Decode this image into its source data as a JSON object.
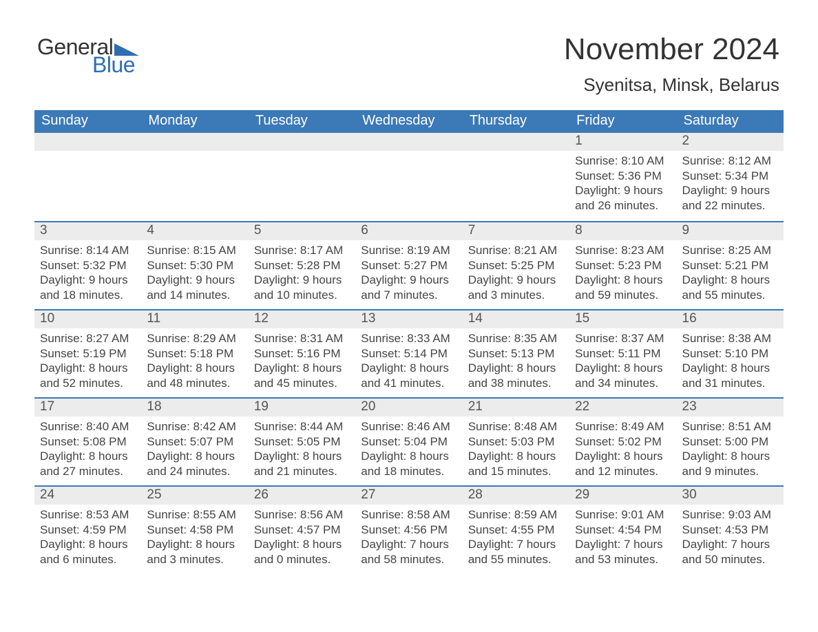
{
  "brand": {
    "text1": "General",
    "text2": "Blue",
    "accent_color": "#2d6eb4"
  },
  "title": "November 2024",
  "location": "Syenitsa, Minsk, Belarus",
  "header_bg": "#3b79b7",
  "header_text_color": "#ffffff",
  "row_divider_color": "#3b79b7",
  "daynum_bg": "#ececec",
  "text_color": "#444444",
  "days_of_week": [
    "Sunday",
    "Monday",
    "Tuesday",
    "Wednesday",
    "Thursday",
    "Friday",
    "Saturday"
  ],
  "weeks": [
    [
      {
        "n": "",
        "lines": []
      },
      {
        "n": "",
        "lines": []
      },
      {
        "n": "",
        "lines": []
      },
      {
        "n": "",
        "lines": []
      },
      {
        "n": "",
        "lines": []
      },
      {
        "n": "1",
        "lines": [
          "Sunrise: 8:10 AM",
          "Sunset: 5:36 PM",
          "Daylight: 9 hours",
          "and 26 minutes."
        ]
      },
      {
        "n": "2",
        "lines": [
          "Sunrise: 8:12 AM",
          "Sunset: 5:34 PM",
          "Daylight: 9 hours",
          "and 22 minutes."
        ]
      }
    ],
    [
      {
        "n": "3",
        "lines": [
          "Sunrise: 8:14 AM",
          "Sunset: 5:32 PM",
          "Daylight: 9 hours",
          "and 18 minutes."
        ]
      },
      {
        "n": "4",
        "lines": [
          "Sunrise: 8:15 AM",
          "Sunset: 5:30 PM",
          "Daylight: 9 hours",
          "and 14 minutes."
        ]
      },
      {
        "n": "5",
        "lines": [
          "Sunrise: 8:17 AM",
          "Sunset: 5:28 PM",
          "Daylight: 9 hours",
          "and 10 minutes."
        ]
      },
      {
        "n": "6",
        "lines": [
          "Sunrise: 8:19 AM",
          "Sunset: 5:27 PM",
          "Daylight: 9 hours",
          "and 7 minutes."
        ]
      },
      {
        "n": "7",
        "lines": [
          "Sunrise: 8:21 AM",
          "Sunset: 5:25 PM",
          "Daylight: 9 hours",
          "and 3 minutes."
        ]
      },
      {
        "n": "8",
        "lines": [
          "Sunrise: 8:23 AM",
          "Sunset: 5:23 PM",
          "Daylight: 8 hours",
          "and 59 minutes."
        ]
      },
      {
        "n": "9",
        "lines": [
          "Sunrise: 8:25 AM",
          "Sunset: 5:21 PM",
          "Daylight: 8 hours",
          "and 55 minutes."
        ]
      }
    ],
    [
      {
        "n": "10",
        "lines": [
          "Sunrise: 8:27 AM",
          "Sunset: 5:19 PM",
          "Daylight: 8 hours",
          "and 52 minutes."
        ]
      },
      {
        "n": "11",
        "lines": [
          "Sunrise: 8:29 AM",
          "Sunset: 5:18 PM",
          "Daylight: 8 hours",
          "and 48 minutes."
        ]
      },
      {
        "n": "12",
        "lines": [
          "Sunrise: 8:31 AM",
          "Sunset: 5:16 PM",
          "Daylight: 8 hours",
          "and 45 minutes."
        ]
      },
      {
        "n": "13",
        "lines": [
          "Sunrise: 8:33 AM",
          "Sunset: 5:14 PM",
          "Daylight: 8 hours",
          "and 41 minutes."
        ]
      },
      {
        "n": "14",
        "lines": [
          "Sunrise: 8:35 AM",
          "Sunset: 5:13 PM",
          "Daylight: 8 hours",
          "and 38 minutes."
        ]
      },
      {
        "n": "15",
        "lines": [
          "Sunrise: 8:37 AM",
          "Sunset: 5:11 PM",
          "Daylight: 8 hours",
          "and 34 minutes."
        ]
      },
      {
        "n": "16",
        "lines": [
          "Sunrise: 8:38 AM",
          "Sunset: 5:10 PM",
          "Daylight: 8 hours",
          "and 31 minutes."
        ]
      }
    ],
    [
      {
        "n": "17",
        "lines": [
          "Sunrise: 8:40 AM",
          "Sunset: 5:08 PM",
          "Daylight: 8 hours",
          "and 27 minutes."
        ]
      },
      {
        "n": "18",
        "lines": [
          "Sunrise: 8:42 AM",
          "Sunset: 5:07 PM",
          "Daylight: 8 hours",
          "and 24 minutes."
        ]
      },
      {
        "n": "19",
        "lines": [
          "Sunrise: 8:44 AM",
          "Sunset: 5:05 PM",
          "Daylight: 8 hours",
          "and 21 minutes."
        ]
      },
      {
        "n": "20",
        "lines": [
          "Sunrise: 8:46 AM",
          "Sunset: 5:04 PM",
          "Daylight: 8 hours",
          "and 18 minutes."
        ]
      },
      {
        "n": "21",
        "lines": [
          "Sunrise: 8:48 AM",
          "Sunset: 5:03 PM",
          "Daylight: 8 hours",
          "and 15 minutes."
        ]
      },
      {
        "n": "22",
        "lines": [
          "Sunrise: 8:49 AM",
          "Sunset: 5:02 PM",
          "Daylight: 8 hours",
          "and 12 minutes."
        ]
      },
      {
        "n": "23",
        "lines": [
          "Sunrise: 8:51 AM",
          "Sunset: 5:00 PM",
          "Daylight: 8 hours",
          "and 9 minutes."
        ]
      }
    ],
    [
      {
        "n": "24",
        "lines": [
          "Sunrise: 8:53 AM",
          "Sunset: 4:59 PM",
          "Daylight: 8 hours",
          "and 6 minutes."
        ]
      },
      {
        "n": "25",
        "lines": [
          "Sunrise: 8:55 AM",
          "Sunset: 4:58 PM",
          "Daylight: 8 hours",
          "and 3 minutes."
        ]
      },
      {
        "n": "26",
        "lines": [
          "Sunrise: 8:56 AM",
          "Sunset: 4:57 PM",
          "Daylight: 8 hours",
          "and 0 minutes."
        ]
      },
      {
        "n": "27",
        "lines": [
          "Sunrise: 8:58 AM",
          "Sunset: 4:56 PM",
          "Daylight: 7 hours",
          "and 58 minutes."
        ]
      },
      {
        "n": "28",
        "lines": [
          "Sunrise: 8:59 AM",
          "Sunset: 4:55 PM",
          "Daylight: 7 hours",
          "and 55 minutes."
        ]
      },
      {
        "n": "29",
        "lines": [
          "Sunrise: 9:01 AM",
          "Sunset: 4:54 PM",
          "Daylight: 7 hours",
          "and 53 minutes."
        ]
      },
      {
        "n": "30",
        "lines": [
          "Sunrise: 9:03 AM",
          "Sunset: 4:53 PM",
          "Daylight: 7 hours",
          "and 50 minutes."
        ]
      }
    ]
  ]
}
